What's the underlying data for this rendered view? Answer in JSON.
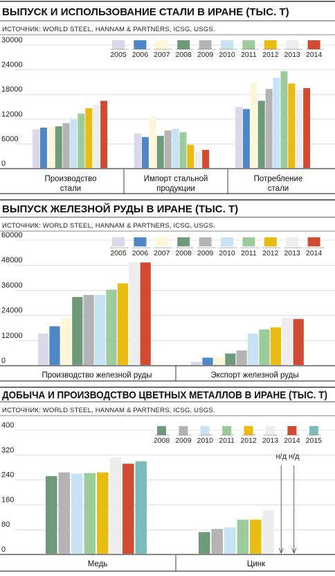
{
  "colors": {
    "2005": "#dcd8ec",
    "2006": "#4f86c6",
    "2007": "#fdf6d8",
    "2008": "#6f9a79",
    "2009": "#b4b4b4",
    "2010": "#c6e2f3",
    "2011": "#9ccc9c",
    "2012": "#e9bc14",
    "2013": "#ededed",
    "2014": "#d04b32",
    "2015": "#79bcb9"
  },
  "chart_data": [
    {
      "type": "bar",
      "title": "ВЫПУСК И ИСПОЛЬЗОВАНИЕ СТАЛИ В ИРАНЕ (ТЫС. Т)",
      "source": "ИСТОЧНИК: WORLD STEEL, HANNAM & PARTNERS, ICSG, USGS.",
      "ylim": [
        0,
        30000
      ],
      "yticks": [
        "0",
        "6000",
        "12000",
        "18000",
        "24000",
        "30000"
      ],
      "legend": [
        "2005",
        "2006",
        "2007",
        "2008",
        "2009",
        "2010",
        "2011",
        "2012",
        "2013",
        "2014"
      ],
      "groups": [
        {
          "label": "Производство стали",
          "values": [
            9400,
            9800,
            10000,
            10100,
            10900,
            11900,
            13200,
            14500,
            15300,
            16300
          ]
        },
        {
          "label": "Импорт стальной продукции",
          "values": [
            8400,
            7500,
            12300,
            7800,
            9100,
            9500,
            8700,
            5600,
            4100,
            4400
          ]
        },
        {
          "label": "Потребление стали",
          "values": [
            14800,
            14300,
            20700,
            16300,
            19200,
            21900,
            23500,
            20500,
            18900,
            19400
          ]
        }
      ]
    },
    {
      "type": "bar",
      "title": "ВЫПУСК ЖЕЛЕЗНОЙ РУДЫ В ИРАНЕ (ТЫС. Т)",
      "source": "ИСТОЧНИК: WORLD STEEL, HANNAM & PARTNERS, ICSG, USGS.",
      "ylim": [
        0,
        60000
      ],
      "yticks": [
        "0",
        "12000",
        "24000",
        "36000",
        "48000",
        "60000"
      ],
      "legend": [
        "2005",
        "2006",
        "2007",
        "2008",
        "2009",
        "2010",
        "2011",
        "2012",
        "2013",
        "2014"
      ],
      "groups": [
        {
          "label": "Производство железной руды",
          "values": [
            15000,
            18500,
            22500,
            32500,
            33500,
            33500,
            36000,
            39000,
            49000,
            49000
          ]
        },
        {
          "label": "Экспорт железной руды",
          "values": [
            1500,
            3500,
            4000,
            5500,
            7000,
            15000,
            17000,
            18000,
            22500,
            22000
          ]
        }
      ]
    },
    {
      "type": "bar",
      "title": "ДОБЫЧА И ПРОИЗВОДСТВО ЦВЕТНЫХ МЕТАЛЛОВ В ИРАНЕ (ТЫС. Т)",
      "source": "ИСТОЧНИК: WORLD STEEL, HANNAM & PARTNERS, ICSG, USGS.",
      "ylim": [
        0,
        400
      ],
      "yticks": [
        "0",
        "80",
        "160",
        "240",
        "320",
        "400"
      ],
      "legend": [
        "2008",
        "2009",
        "2010",
        "2011",
        "2012",
        "2013",
        "2014",
        "2015"
      ],
      "na_label": "н/д",
      "groups": [
        {
          "label": "Медь",
          "values": [
            250,
            262,
            258,
            260,
            262,
            310,
            290,
            298
          ]
        },
        {
          "label": "Цинк",
          "values": [
            70,
            80,
            85,
            110,
            110,
            140,
            null,
            null
          ]
        }
      ]
    }
  ]
}
